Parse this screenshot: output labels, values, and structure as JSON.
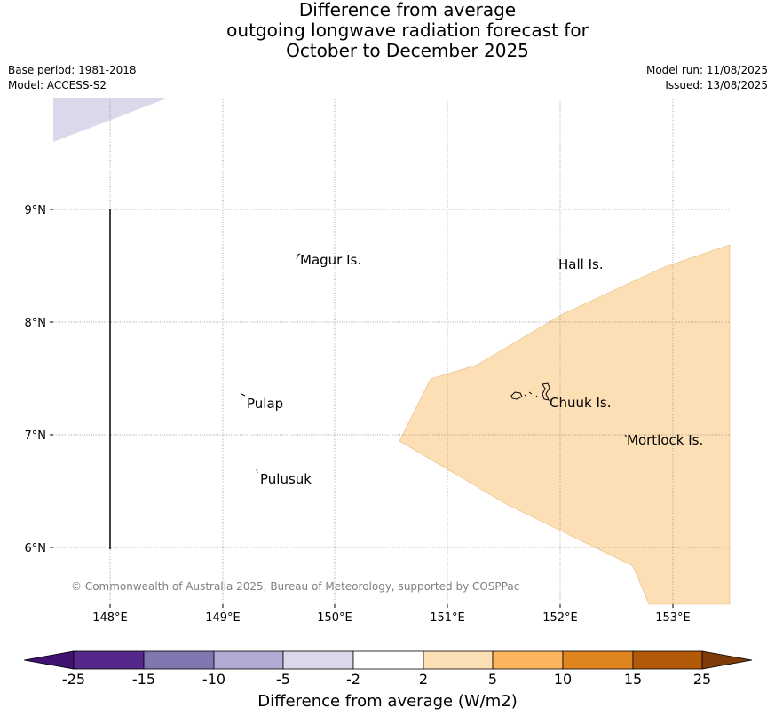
{
  "header": {
    "title_lines": [
      "Difference from average",
      "outgoing longwave radiation forecast for",
      "October to December 2025"
    ],
    "base_period": "Base period: 1981-2018",
    "model": "Model: ACCESS-S2",
    "model_run": "Model run: 11/08/2025",
    "issued": "Issued: 13/08/2025"
  },
  "map": {
    "lon_ticks": [
      "148°E",
      "149°E",
      "150°E",
      "151°E",
      "152°E",
      "153°E"
    ],
    "lat_ticks": [
      "9°N",
      "8°N",
      "7°N",
      "6°N"
    ],
    "places": [
      {
        "name": "Magur Is.",
        "lon": 149.67,
        "lat": 8.57
      },
      {
        "name": "Hall Is.",
        "lon": 151.97,
        "lat": 8.53
      },
      {
        "name": "Pulap",
        "lon": 149.18,
        "lat": 7.3
      },
      {
        "name": "Chuuk Is.",
        "lon": 151.85,
        "lat": 7.29
      },
      {
        "name": "Mortlock Is.",
        "lon": 152.58,
        "lat": 6.97
      },
      {
        "name": "Pulusuk",
        "lon": 149.3,
        "lat": 6.63
      }
    ],
    "copyright": "© Commonwealth of Australia 2025, Bureau of Meteorology, supported by COSPPac",
    "anomaly_regions": [
      {
        "category": "-5 to -2",
        "color": "#d9d9eb"
      },
      {
        "category": "2 to 5",
        "color": "#fddfb5"
      }
    ]
  },
  "colorbar": {
    "title": "Difference from average (W/m2)",
    "tick_labels": [
      "-25",
      "-15",
      "-10",
      "-5",
      "-2",
      "2",
      "5",
      "10",
      "15",
      "25"
    ],
    "colors": [
      "#3f1272",
      "#55288c",
      "#8276b1",
      "#b2aad3",
      "#d9d9eb",
      "#ffffff",
      "#fddfb5",
      "#fdb45e",
      "#e08420",
      "#b3590a",
      "#7f3b08"
    ]
  }
}
